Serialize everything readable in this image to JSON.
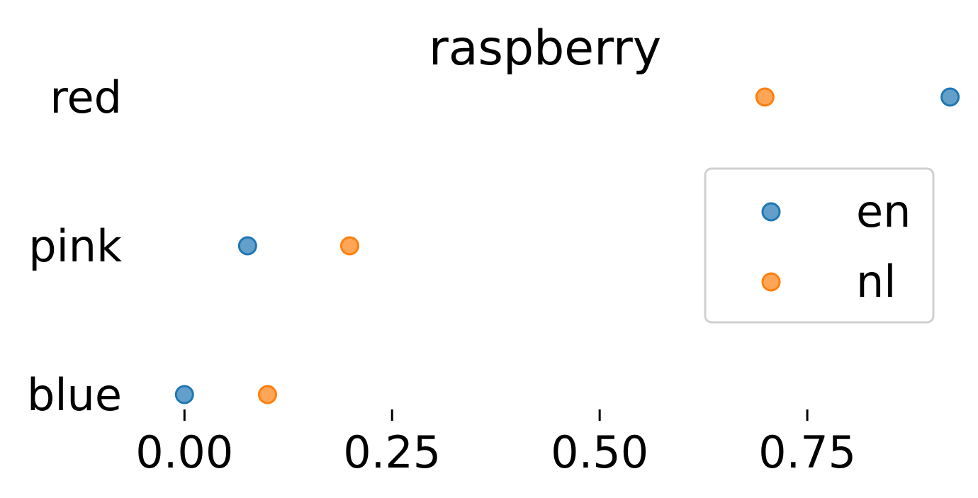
{
  "chart_data": {
    "type": "scatter",
    "title": "raspberry",
    "xlabel": "",
    "ylabel": "",
    "categories": [
      "blue",
      "pink",
      "red"
    ],
    "xlim": [
      -0.06,
      0.93
    ],
    "xticks": [
      0.0,
      0.25,
      0.5,
      0.75
    ],
    "xtick_labels": [
      "0.00",
      "0.25",
      "0.50",
      "0.75"
    ],
    "series": [
      {
        "name": "en",
        "color": "#1f77b4",
        "values": [
          0.0,
          0.076,
          0.922
        ]
      },
      {
        "name": "nl",
        "color": "#ff7f0e",
        "values": [
          0.1,
          0.199,
          0.699
        ]
      }
    ],
    "legend_position": "center-right",
    "grid": false
  }
}
